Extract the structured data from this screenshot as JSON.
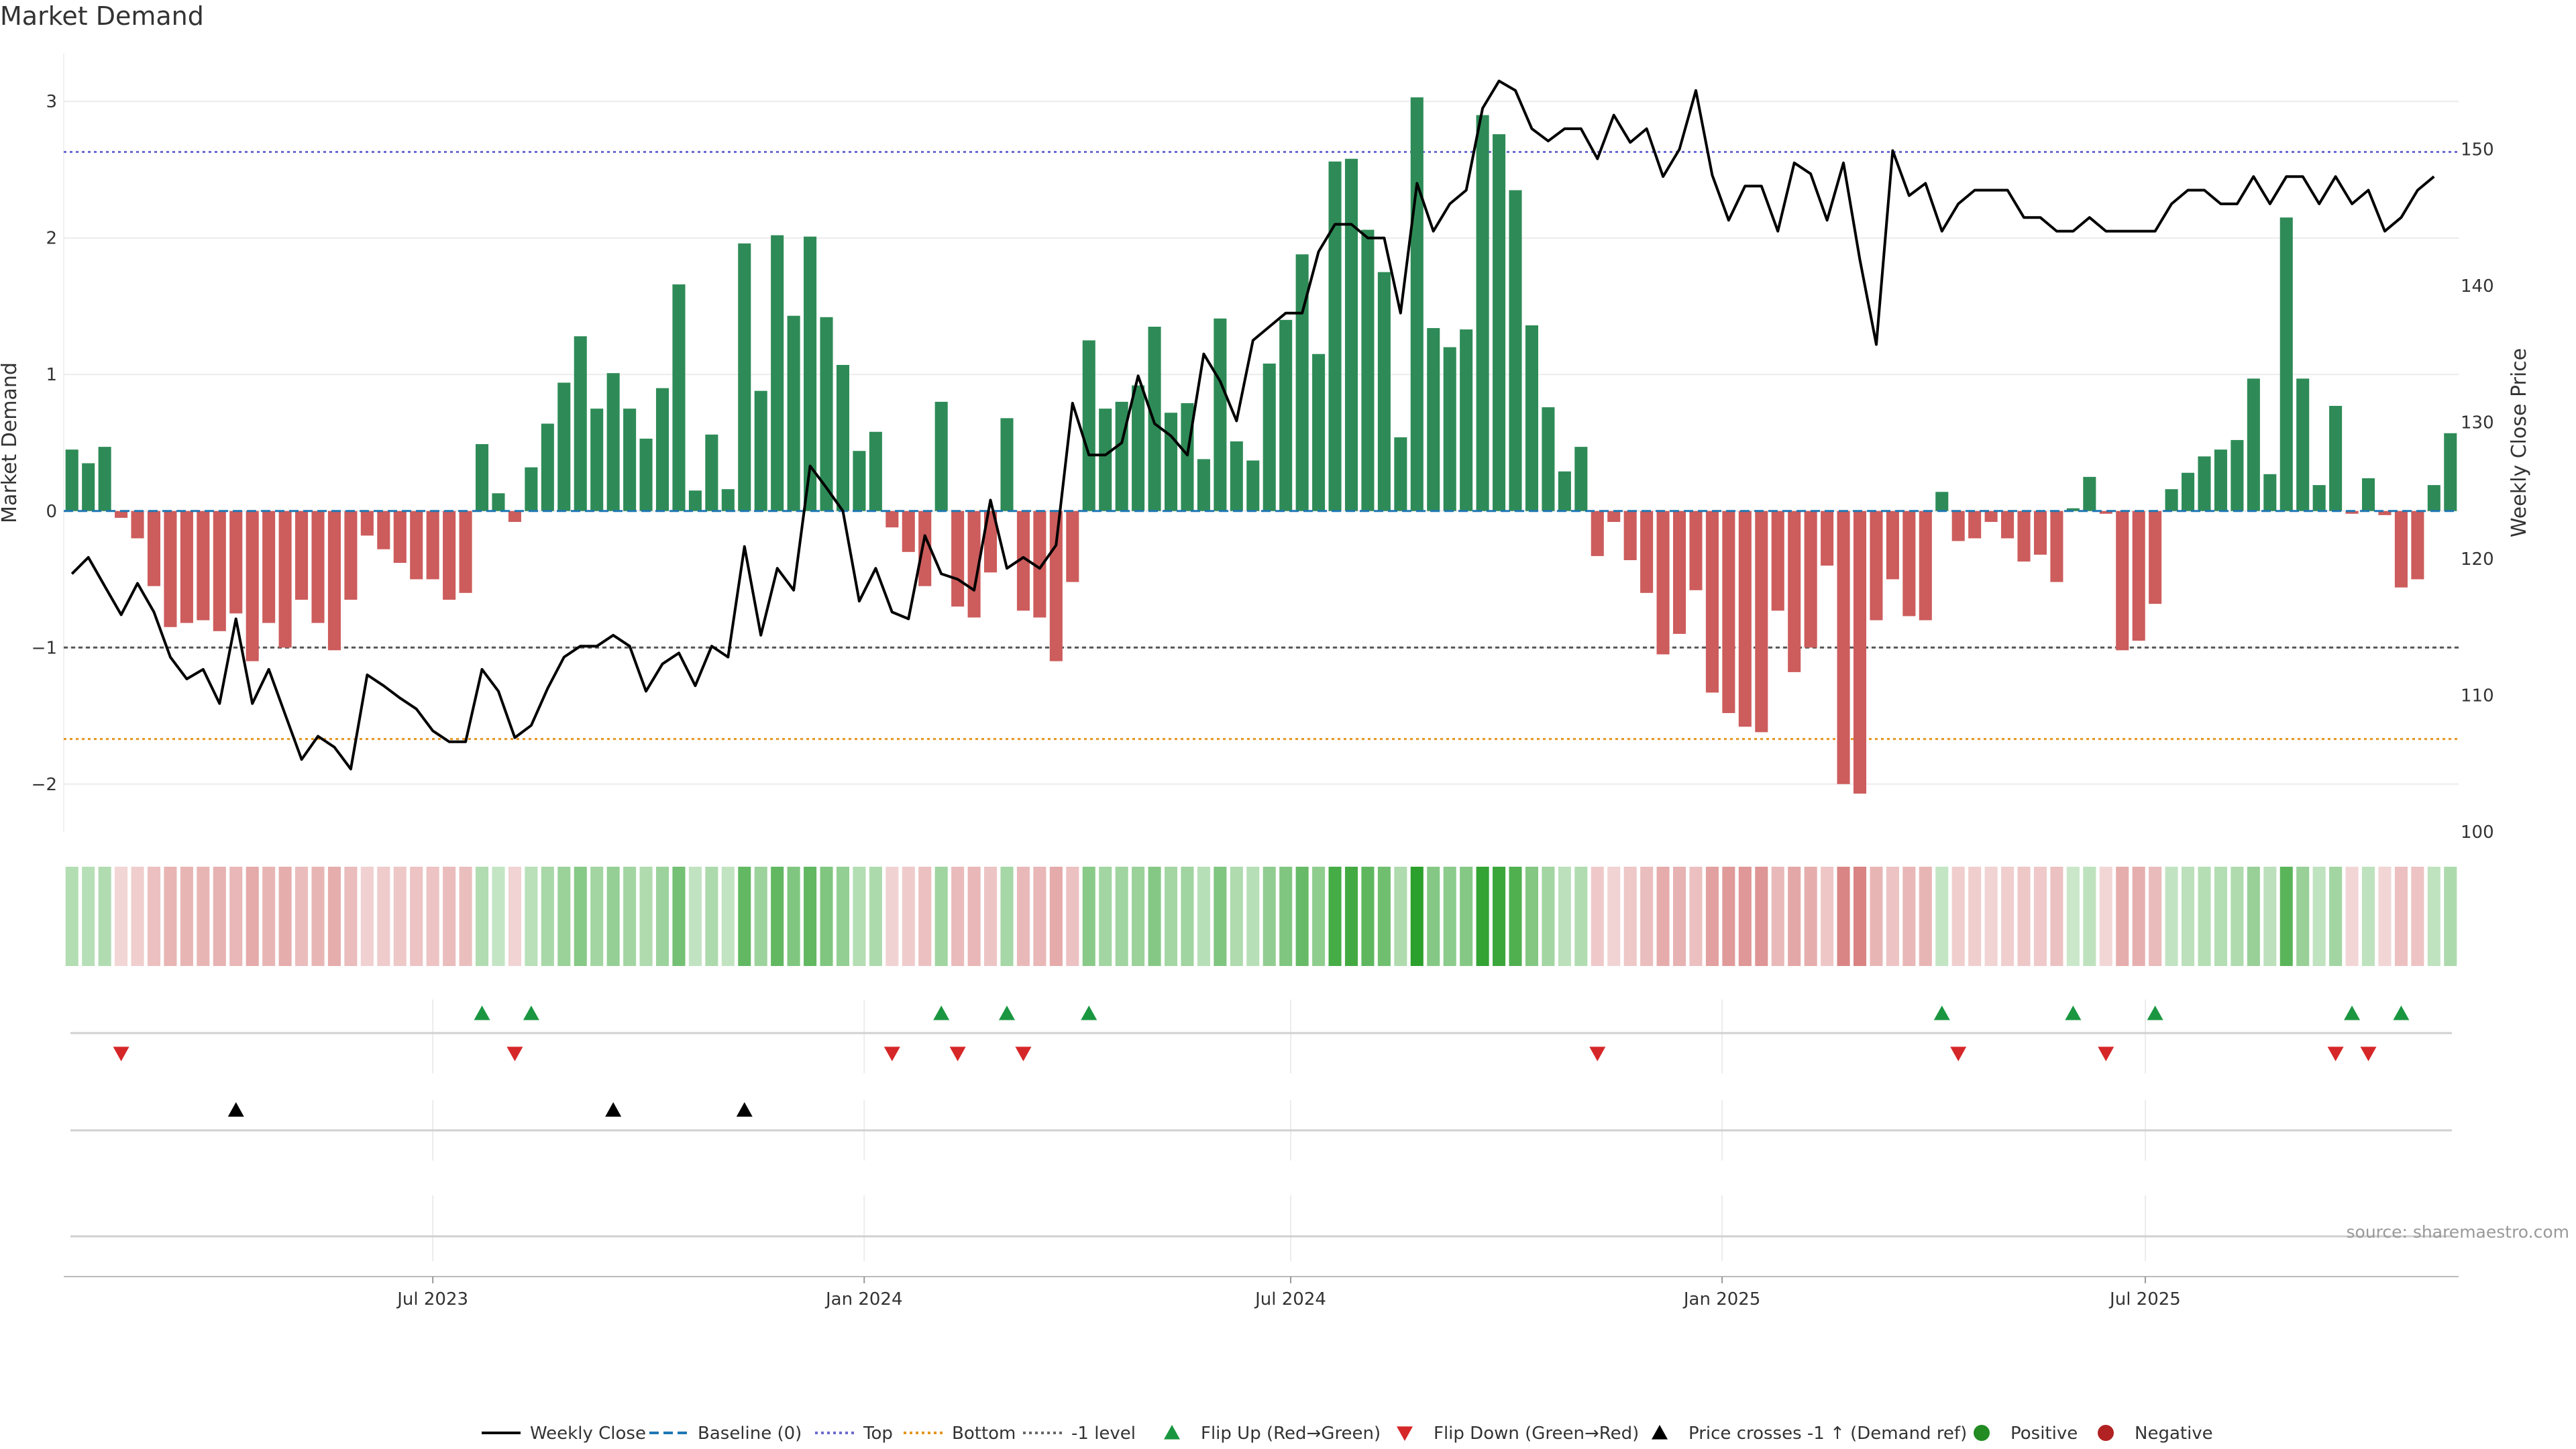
{
  "chart_data": {
    "type": "bar",
    "title": "Market Demand",
    "source": "source: sharemaestro.com",
    "ylabel_left": "Market Demand",
    "ylabel_right": "Weekly Close Price",
    "ylim_left": [
      -2.35,
      3.35
    ],
    "ylim_right": [
      100,
      157
    ],
    "yticks_left": [
      {
        "v": 3,
        "label": "3"
      },
      {
        "v": 2,
        "label": "2"
      },
      {
        "v": 1,
        "label": "1"
      },
      {
        "v": 0,
        "label": "0"
      },
      {
        "v": -1,
        "label": "−1"
      },
      {
        "v": -2,
        "label": "−2"
      }
    ],
    "yticks_right": [
      {
        "v": 150,
        "label": "150"
      },
      {
        "v": 140,
        "label": "140"
      },
      {
        "v": 130,
        "label": "130"
      },
      {
        "v": 120,
        "label": "120"
      },
      {
        "v": 110,
        "label": "110"
      },
      {
        "v": 100,
        "label": "100"
      }
    ],
    "xticks": [
      {
        "i": 22,
        "label": "Jul 2023"
      },
      {
        "i": 48.3,
        "label": "Jan 2024"
      },
      {
        "i": 74.3,
        "label": "Jul 2024"
      },
      {
        "i": 100.6,
        "label": "Jan 2025"
      },
      {
        "i": 126.4,
        "label": "Jul 2025"
      }
    ],
    "levels": {
      "top": 2.63,
      "bottom": -1.67,
      "minus_one": -1,
      "baseline": 0
    },
    "demand": [
      0.45,
      0.35,
      0.47,
      -0.05,
      -0.2,
      -0.55,
      -0.85,
      -0.82,
      -0.8,
      -0.88,
      -0.75,
      -1.1,
      -0.82,
      -1.0,
      -0.65,
      -0.82,
      -1.02,
      -0.65,
      -0.18,
      -0.28,
      -0.38,
      -0.5,
      -0.5,
      -0.65,
      -0.6,
      0.49,
      0.13,
      -0.08,
      0.32,
      0.64,
      0.94,
      1.28,
      0.75,
      1.01,
      0.75,
      0.53,
      0.9,
      1.66,
      0.15,
      0.56,
      0.16,
      1.96,
      0.88,
      2.02,
      1.43,
      2.01,
      1.42,
      1.07,
      0.44,
      0.58,
      -0.12,
      -0.3,
      -0.55,
      0.8,
      -0.7,
      -0.78,
      -0.45,
      0.68,
      -0.73,
      -0.78,
      -1.1,
      -0.52,
      1.25,
      0.75,
      0.8,
      0.92,
      1.35,
      0.72,
      0.79,
      0.38,
      1.41,
      0.51,
      0.37,
      1.08,
      1.4,
      1.88,
      1.15,
      2.56,
      2.58,
      2.06,
      1.75,
      0.54,
      3.03,
      1.34,
      1.2,
      1.33,
      2.9,
      2.76,
      2.35,
      1.36,
      0.76,
      0.29,
      0.47,
      -0.33,
      -0.08,
      -0.36,
      -0.6,
      -1.05,
      -0.9,
      -0.58,
      -1.33,
      -1.48,
      -1.58,
      -1.62,
      -0.73,
      -1.18,
      -1.0,
      -0.4,
      -2.0,
      -2.07,
      -0.8,
      -0.5,
      -0.77,
      -0.8,
      0.14,
      -0.22,
      -0.2,
      -0.08,
      -0.2,
      -0.37,
      -0.32,
      -0.52,
      0.02,
      0.25,
      -0.02,
      -1.02,
      -0.95,
      -0.68,
      0.16,
      0.28,
      0.4,
      0.45,
      0.52,
      0.97,
      0.27,
      2.15,
      0.97,
      0.19,
      0.77,
      -0.02,
      0.24,
      -0.03,
      -0.56,
      -0.5,
      0.19,
      0.57
    ],
    "price": [
      118.9,
      120.1,
      118.0,
      115.9,
      118.2,
      116.1,
      112.8,
      111.2,
      111.9,
      109.4,
      115.6,
      109.4,
      111.9,
      108.6,
      105.3,
      107.0,
      106.2,
      104.6,
      111.5,
      110.7,
      109.8,
      109.0,
      107.4,
      106.6,
      106.6,
      111.9,
      110.3,
      106.9,
      107.8,
      110.5,
      112.8,
      113.6,
      113.6,
      114.4,
      113.6,
      110.3,
      112.3,
      113.1,
      110.7,
      113.6,
      112.8,
      120.9,
      114.4,
      119.3,
      117.7,
      126.8,
      125.2,
      123.5,
      116.9,
      119.3,
      116.1,
      115.6,
      121.7,
      118.9,
      118.5,
      117.7,
      124.3,
      119.3,
      120.1,
      119.3,
      121.0,
      131.4,
      127.6,
      127.6,
      128.5,
      133.4,
      129.9,
      129.0,
      127.6,
      135.0,
      133.0,
      130.1,
      136.0,
      137.0,
      138.0,
      138.0,
      142.5,
      144.5,
      144.5,
      143.5,
      143.5,
      138.0,
      147.5,
      144.0,
      146.0,
      147.0,
      153.0,
      155.0,
      154.3,
      151.5,
      150.6,
      151.5,
      151.5,
      149.3,
      152.5,
      150.5,
      151.5,
      148.0,
      150.0,
      154.3,
      148.1,
      144.8,
      147.3,
      147.3,
      144.0,
      149.0,
      148.2,
      144.8,
      149.0,
      141.9,
      135.7,
      149.9,
      146.6,
      147.5,
      144.0,
      146.0,
      147.0,
      147.0,
      147.0,
      145.0,
      145.0,
      144.0,
      144.0,
      145.0,
      144.0,
      144.0,
      144.0,
      144.0,
      146.0,
      147.0,
      147.0,
      146.0,
      146.0,
      148.0,
      146.0,
      148.0,
      148.0,
      146.0,
      148.0,
      146.0,
      147.0,
      144.0,
      145.0,
      147.0,
      148.0
    ],
    "flip_up": [
      25,
      28,
      53,
      57,
      62,
      114,
      122,
      127,
      139,
      142
    ],
    "flip_down": [
      3,
      27,
      50,
      54,
      58,
      93,
      115,
      124,
      138,
      140
    ],
    "price_crosses": [
      10,
      33,
      41
    ],
    "legend": [
      {
        "key": "line",
        "label": "Weekly Close",
        "color": "#000000"
      },
      {
        "key": "baseline",
        "label": "Baseline (0)",
        "color": "#1f77b4"
      },
      {
        "key": "top",
        "label": "Top",
        "color": "#6a6ad0"
      },
      {
        "key": "bottom",
        "label": "Bottom",
        "color": "#e69520"
      },
      {
        "key": "minus1",
        "label": "-1 level",
        "color": "#666666"
      },
      {
        "key": "up",
        "label": "Flip Up (Red→Green)",
        "color": "#1a9641"
      },
      {
        "key": "down",
        "label": "Flip Down (Green→Red)",
        "color": "#d62728"
      },
      {
        "key": "cross",
        "label": "Price crosses -1 ↑ (Demand ref)",
        "color": "#000000"
      },
      {
        "key": "pos",
        "label": "Positive",
        "color": "#228b22"
      },
      {
        "key": "neg",
        "label": "Negative",
        "color": "#b22222"
      }
    ],
    "colors": {
      "positive": "#2e8b57",
      "negative": "#cd5c5c",
      "heat_positive": "#2ca02c",
      "heat_negative": "#cd5c5c"
    }
  }
}
